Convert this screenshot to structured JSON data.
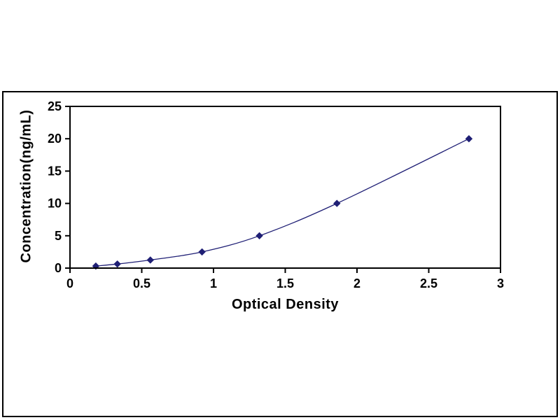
{
  "figure": {
    "background": "#ffffff",
    "frame_border_color": "#000000"
  },
  "chart_data": {
    "type": "line",
    "title": "",
    "xlabel": "Optical Density",
    "ylabel": "Concentration(ng/mL)",
    "x": [
      0.18,
      0.33,
      0.56,
      0.92,
      1.32,
      1.86,
      2.78
    ],
    "y": [
      0.31,
      0.63,
      1.25,
      2.5,
      5,
      10,
      20
    ],
    "xlim": [
      0,
      3
    ],
    "ylim": [
      0,
      25
    ],
    "x_ticks": [
      0,
      0.5,
      1,
      1.5,
      2,
      2.5,
      3
    ],
    "x_tick_labels": [
      "0",
      "0.5",
      "1",
      "1.5",
      "2",
      "2.5",
      "3"
    ],
    "y_ticks": [
      0,
      5,
      10,
      15,
      20,
      25
    ],
    "y_tick_labels": [
      "0",
      "5",
      "10",
      "15",
      "20",
      "25"
    ],
    "marker": "diamond",
    "line_color": "#1F1F75",
    "marker_color": "#1F1F75",
    "axis_color": "#000000",
    "grid": false,
    "legend": null
  }
}
